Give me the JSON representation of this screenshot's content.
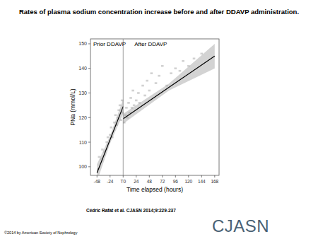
{
  "title": "Rates of plasma sodium concentration increase before and after DDAVP administration.",
  "citation": "Cédric Rafat et al. CJASN 2014;9:229-237",
  "copyright": "©2014 by American Society of Nephrology",
  "logo": "CJASN",
  "chart_data": {
    "type": "line",
    "x_label": "Time elapsed (hours)",
    "y_label": "PNa (mmol/L)",
    "annotations": [
      "Prior DDAVP",
      "After DDAVP"
    ],
    "xlim": [
      -60,
      176
    ],
    "ylim": [
      96.5,
      152
    ],
    "xticks": [
      -48,
      -24,
      {
        "value": 0,
        "label": "T0"
      },
      24,
      48,
      72,
      96,
      120,
      144,
      168
    ],
    "yticks": [
      100,
      110,
      120,
      130,
      140,
      150
    ],
    "vline": 0,
    "grid": false,
    "series": [
      {
        "color": "#000000",
        "x": [
          -48,
          -24,
          0
        ],
        "values": [
          97.5,
          111,
          124.5
        ],
        "lower": [
          94,
          109.5,
          121.5
        ],
        "upper": [
          101,
          112.5,
          127.5
        ]
      },
      {
        "color": "#000000",
        "x": [
          0,
          84,
          168
        ],
        "values": [
          119.5,
          132.3,
          145
        ],
        "lower": [
          117.5,
          131,
          140
        ],
        "upper": [
          121.5,
          133.8,
          150
        ]
      }
    ],
    "points": {
      "color": "#bdbdbd",
      "x": [
        -46,
        -44,
        -40,
        -38,
        -34,
        -30,
        -28,
        -24,
        -22,
        -20,
        -16,
        -14,
        -12,
        -10,
        -8,
        -6,
        -4,
        -2,
        -1,
        2,
        4,
        6,
        8,
        10,
        12,
        14,
        16,
        18,
        20,
        24,
        28,
        30,
        36,
        40,
        44,
        48,
        52,
        60,
        66,
        72,
        80,
        88,
        96,
        104,
        110,
        120,
        130,
        144
      ],
      "values": [
        99,
        104,
        103,
        107,
        106,
        110,
        112,
        113,
        116,
        112,
        118,
        121,
        117,
        120,
        123,
        125,
        119,
        127,
        122,
        118,
        121,
        124,
        120,
        126,
        122,
        128,
        124,
        131,
        125,
        127,
        130,
        126,
        133,
        129,
        135,
        131,
        138,
        134,
        137,
        141,
        133,
        138,
        140,
        139,
        143,
        141,
        144,
        146
      ]
    }
  }
}
